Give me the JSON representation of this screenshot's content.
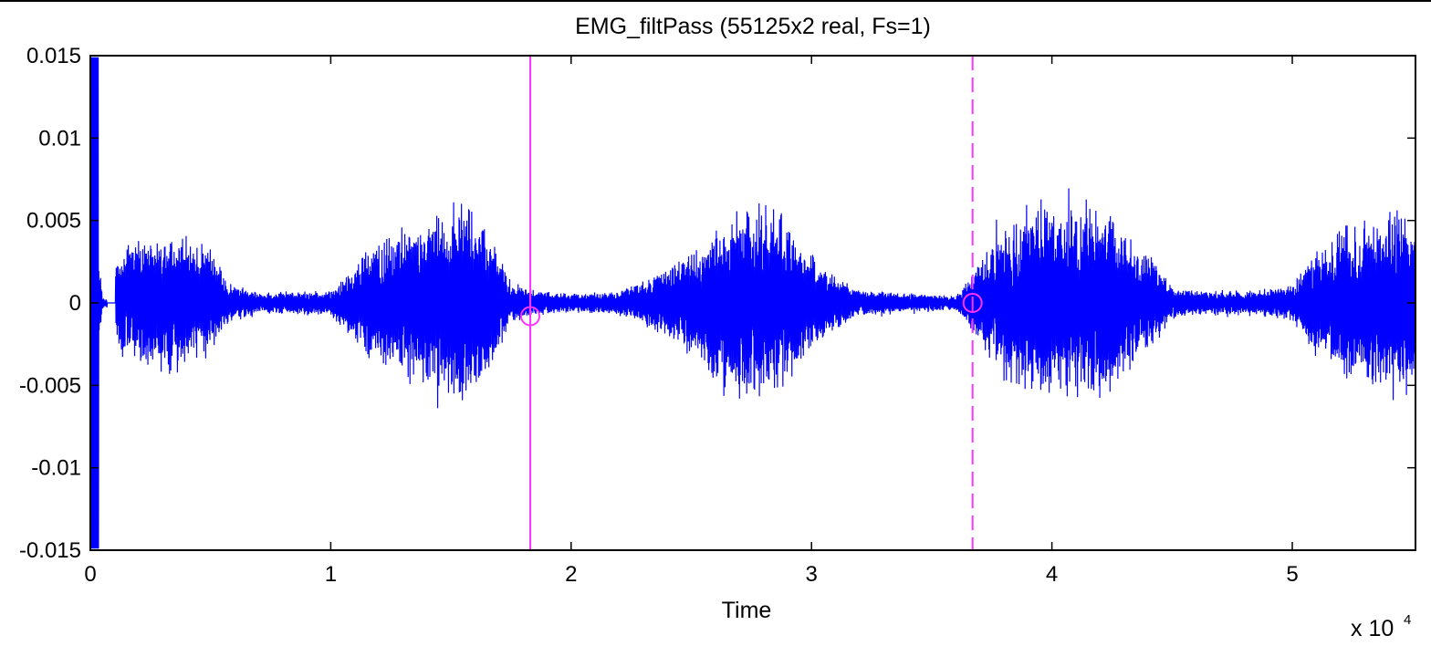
{
  "chart_data": {
    "type": "line",
    "title": "EMG_filtPass (55125x2 real, Fs=1)",
    "xlabel": "Time",
    "ylabel": "",
    "x_exponent_label": "x 10",
    "x_exponent_power": "4",
    "xlim": [
      0,
      55125
    ],
    "ylim": [
      -0.015,
      0.015
    ],
    "x_ticks": [
      0,
      10000,
      20000,
      30000,
      40000,
      50000
    ],
    "x_tick_labels": [
      "0",
      "1",
      "2",
      "3",
      "4",
      "5"
    ],
    "y_ticks": [
      0.015,
      0.01,
      0.005,
      0,
      -0.005,
      -0.01,
      -0.015
    ],
    "y_tick_labels": [
      "0.015",
      "0.01",
      "0.005",
      "0",
      "-0.005",
      "-0.01",
      "-0.015"
    ],
    "grid": false,
    "series": [
      {
        "color": "#0000ff",
        "envelope_x": [
          0,
          250,
          500,
          900,
          1100,
          2000,
          3000,
          4000,
          5000,
          5800,
          7000,
          10000,
          11500,
          12500,
          14000,
          15500,
          16500,
          17500,
          18500,
          20000,
          22000,
          24000,
          25500,
          26500,
          27500,
          28500,
          29500,
          30500,
          32000,
          34000,
          36000,
          37000,
          38000,
          39000,
          40000,
          41000,
          42000,
          43000,
          44000,
          45000,
          46000,
          48000,
          50000,
          51000,
          52000,
          53000,
          54000,
          55125
        ],
        "envelope_y": [
          0.0148,
          0.005,
          0.0004,
          0.0002,
          0.0034,
          0.0038,
          0.0045,
          0.0044,
          0.0036,
          0.0012,
          0.0007,
          0.0008,
          0.0035,
          0.0045,
          0.0055,
          0.0068,
          0.0048,
          0.0014,
          0.0008,
          0.0006,
          0.0008,
          0.0022,
          0.0042,
          0.0058,
          0.0068,
          0.0062,
          0.0045,
          0.0022,
          0.0009,
          0.0006,
          0.0005,
          0.0026,
          0.0048,
          0.0063,
          0.0058,
          0.0066,
          0.0064,
          0.0046,
          0.0032,
          0.0011,
          0.0008,
          0.0008,
          0.0012,
          0.0034,
          0.0048,
          0.0055,
          0.006,
          0.0062
        ]
      }
    ],
    "cursors": [
      {
        "x": 18300,
        "style": "solid",
        "color": "#ff33ff",
        "marker_y": -0.0008
      },
      {
        "x": 36700,
        "style": "dashed",
        "color": "#ff33ff",
        "marker_y": 0.0
      }
    ]
  }
}
